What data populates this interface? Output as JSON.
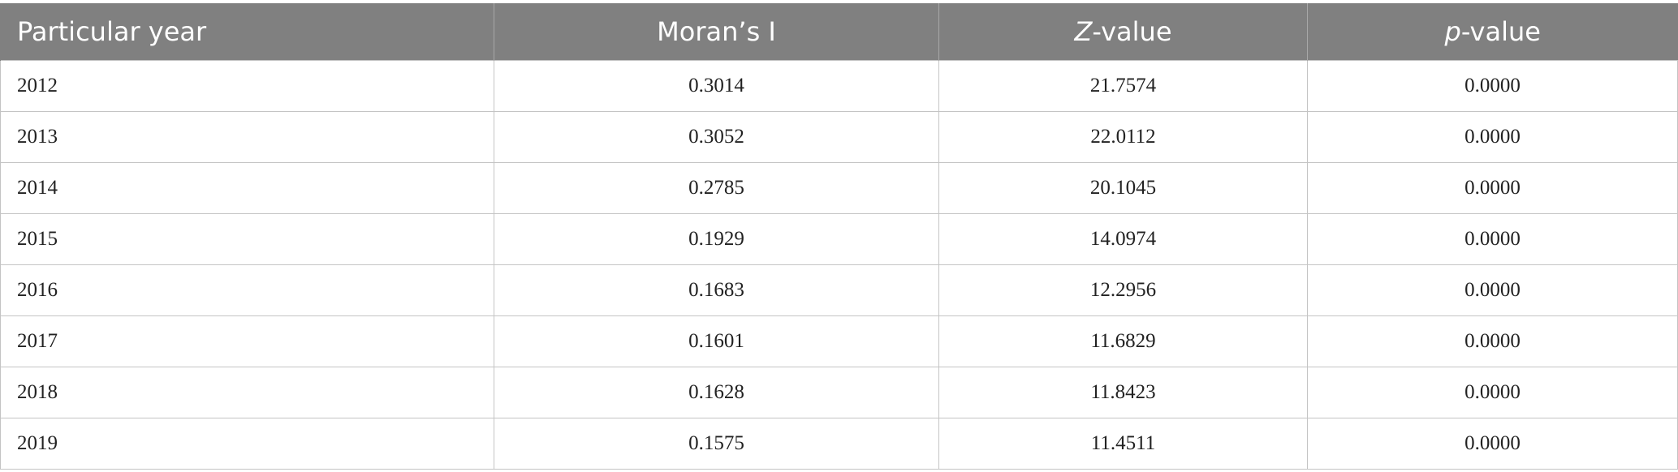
{
  "table": {
    "header": [
      {
        "text": "Particular year"
      },
      {
        "text": "Moran’s I"
      },
      {
        "italic": "Z",
        "text": "-value"
      },
      {
        "italic": "p",
        "text": "-value"
      }
    ],
    "rows": [
      [
        "2012",
        "0.3014",
        "21.7574",
        "0.0000"
      ],
      [
        "2013",
        "0.3052",
        "22.0112",
        "0.0000"
      ],
      [
        "2014",
        "0.2785",
        "20.1045",
        "0.0000"
      ],
      [
        "2015",
        "0.1929",
        "14.0974",
        "0.0000"
      ],
      [
        "2016",
        "0.1683",
        "12.2956",
        "0.0000"
      ],
      [
        "2017",
        "0.1601",
        "11.6829",
        "0.0000"
      ],
      [
        "2018",
        "0.1628",
        "11.8423",
        "0.0000"
      ],
      [
        "2019",
        "0.1575",
        "11.4511",
        "0.0000"
      ]
    ]
  }
}
